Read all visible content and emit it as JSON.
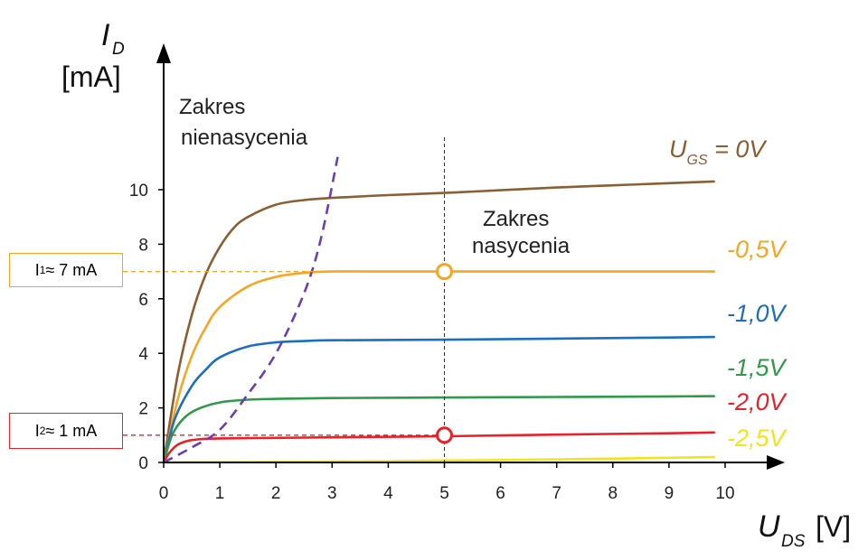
{
  "chart_data": {
    "type": "line",
    "x_axis": {
      "label_symbol": "U",
      "label_subscript": "DS",
      "label_unit": "[V]",
      "range": [
        0,
        10
      ],
      "ticks": [
        0,
        1,
        2,
        3,
        4,
        5,
        6,
        7,
        8,
        9,
        10
      ]
    },
    "y_axis": {
      "label_symbol": "I",
      "label_subscript": "D",
      "label_unit": "[mA]",
      "range": [
        0,
        10
      ],
      "ticks": [
        0,
        2,
        4,
        6,
        8,
        10
      ]
    },
    "series": [
      {
        "name": "U",
        "name_subscript": "GS",
        "name_suffix": " = 0V",
        "color": "#8B5E34",
        "points": [
          [
            0,
            0
          ],
          [
            0.25,
            3.2
          ],
          [
            0.5,
            5.4
          ],
          [
            0.75,
            6.9
          ],
          [
            1,
            7.9
          ],
          [
            1.25,
            8.6
          ],
          [
            1.5,
            9.0
          ],
          [
            2,
            9.45
          ],
          [
            2.5,
            9.62
          ],
          [
            3,
            9.7
          ],
          [
            4,
            9.8
          ],
          [
            5,
            9.88
          ],
          [
            6,
            9.98
          ],
          [
            7,
            10.08
          ],
          [
            8,
            10.16
          ],
          [
            9,
            10.24
          ],
          [
            9.8,
            10.3
          ]
        ]
      },
      {
        "name": "-0,5V",
        "color": "#F5A623",
        "points": [
          [
            0,
            0
          ],
          [
            0.25,
            2.3
          ],
          [
            0.5,
            3.9
          ],
          [
            0.75,
            4.95
          ],
          [
            1,
            5.7
          ],
          [
            1.5,
            6.45
          ],
          [
            2,
            6.8
          ],
          [
            2.5,
            6.95
          ],
          [
            3,
            7.0
          ],
          [
            4,
            7.0
          ],
          [
            5,
            7.0
          ],
          [
            6,
            7.0
          ],
          [
            7,
            7.0
          ],
          [
            8,
            7.0
          ],
          [
            9,
            7.0
          ],
          [
            9.8,
            7.0
          ]
        ]
      },
      {
        "name": "-1,0V",
        "color": "#1B6FC2",
        "points": [
          [
            0,
            0
          ],
          [
            0.2,
            1.6
          ],
          [
            0.5,
            2.8
          ],
          [
            0.75,
            3.4
          ],
          [
            1,
            3.85
          ],
          [
            1.5,
            4.25
          ],
          [
            2,
            4.4
          ],
          [
            2.5,
            4.45
          ],
          [
            3,
            4.48
          ],
          [
            5,
            4.5
          ],
          [
            7,
            4.54
          ],
          [
            9,
            4.58
          ],
          [
            9.8,
            4.6
          ]
        ]
      },
      {
        "name": "-1,5V",
        "color": "#2E9A4A",
        "points": [
          [
            0,
            0
          ],
          [
            0.15,
            1.0
          ],
          [
            0.35,
            1.6
          ],
          [
            0.6,
            1.95
          ],
          [
            1,
            2.2
          ],
          [
            1.5,
            2.3
          ],
          [
            2,
            2.33
          ],
          [
            3,
            2.36
          ],
          [
            5,
            2.38
          ],
          [
            7,
            2.4
          ],
          [
            9,
            2.42
          ],
          [
            9.8,
            2.43
          ]
        ]
      },
      {
        "name": "-2,0V",
        "color": "#E8222A",
        "points": [
          [
            0,
            0
          ],
          [
            0.1,
            0.35
          ],
          [
            0.25,
            0.65
          ],
          [
            0.45,
            0.8
          ],
          [
            0.7,
            0.86
          ],
          [
            1,
            0.88
          ],
          [
            2,
            0.9
          ],
          [
            3,
            0.92
          ],
          [
            5,
            0.96
          ],
          [
            7,
            1.02
          ],
          [
            9,
            1.07
          ],
          [
            9.8,
            1.1
          ]
        ]
      },
      {
        "name": "-2,5V",
        "color": "#F2E41C",
        "points": [
          [
            0,
            0
          ],
          [
            2,
            0.02
          ],
          [
            4,
            0.05
          ],
          [
            6,
            0.09
          ],
          [
            8,
            0.14
          ],
          [
            9.8,
            0.2
          ]
        ]
      }
    ],
    "boundary_curve": {
      "style": "dashed",
      "color": "#6A3FB3",
      "points": [
        [
          0,
          0
        ],
        [
          0.5,
          0.55
        ],
        [
          1,
          1.2
        ],
        [
          1.5,
          2.5
        ],
        [
          2,
          4.0
        ],
        [
          2.5,
          6.2
        ],
        [
          2.8,
          8.2
        ],
        [
          3.1,
          11.2
        ]
      ]
    },
    "annotations": {
      "region_triode": [
        "Zakres",
        "nienasycenia"
      ],
      "region_saturation": [
        "Zakres",
        "nasycenia"
      ],
      "vline_x": 5,
      "markers": [
        {
          "x": 5,
          "y": 7,
          "color": "#F5A623"
        },
        {
          "x": 5,
          "y": 1,
          "color": "#E8222A"
        }
      ],
      "callouts": [
        {
          "symbol": "I",
          "sub": "1",
          "text": " ≈ 7 mA",
          "y": 7,
          "color": "#F5A623"
        },
        {
          "symbol": "I",
          "sub": "2",
          "text": " ≈ 1 mA",
          "y": 1,
          "color": "#E8222A"
        }
      ]
    },
    "grid": false
  }
}
